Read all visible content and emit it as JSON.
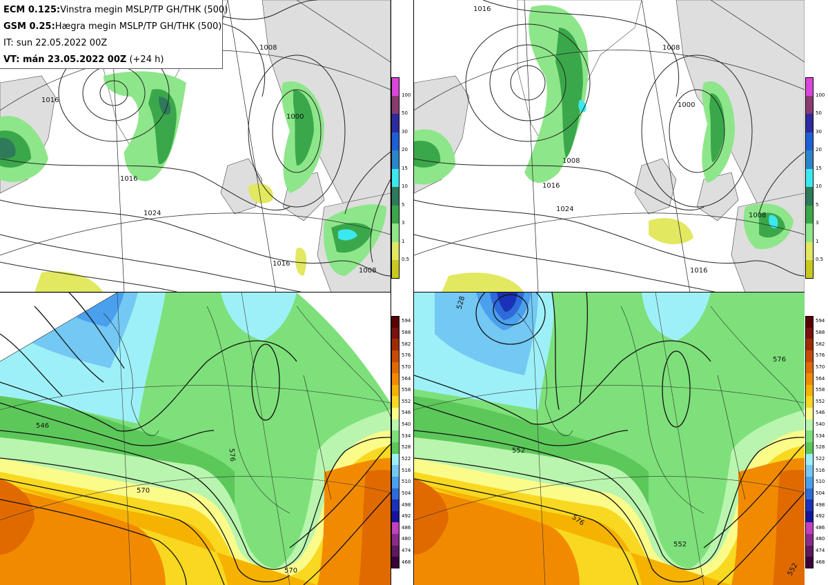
{
  "title_box": {
    "line1_bold": "ECM 0.125:",
    "line1_rest": "Vinstra megin MSLP/TP GH/THK (500)",
    "line2_bold": "GSM 0.25:",
    "line2_rest": "Hægra megin MSLP/TP GH/THK (500)",
    "line3": "IT: sun 22.05.2022 00Z",
    "line4_bold": "VT: mán 23.05.2022 00Z",
    "line4_rest": " (+24 h)"
  },
  "precip_colorbar": {
    "labels": [
      "100",
      "50",
      "30",
      "20",
      "15",
      "10",
      "5",
      "3",
      "1",
      "0.5"
    ],
    "colors": [
      "#d946d9",
      "#8a3a6e",
      "#2e2aa0",
      "#1f5fd6",
      "#2a86c8",
      "#3ce8f0",
      "#2e7a5a",
      "#3aa84a",
      "#8ee68a",
      "#e2e860",
      "#c8c820"
    ]
  },
  "thickness_colorbar": {
    "labels": [
      "594",
      "588",
      "582",
      "576",
      "570",
      "564",
      "558",
      "552",
      "546",
      "540",
      "534",
      "528",
      "522",
      "516",
      "510",
      "504",
      "498",
      "492",
      "486",
      "480",
      "474",
      "468"
    ],
    "colors": [
      "#5a0000",
      "#7a1010",
      "#a02a00",
      "#c84a00",
      "#e06a00",
      "#f28a00",
      "#f6b200",
      "#f8d820",
      "#fbfb8a",
      "#b9f5ae",
      "#7ee07a",
      "#5cc85a",
      "#9ef0f8",
      "#74c8f4",
      "#4aa0ec",
      "#2e6ad8",
      "#1a32b8",
      "#14149c",
      "#c040c0",
      "#8a2a8a",
      "#5c1a5c",
      "#3a003a"
    ]
  },
  "maps": {
    "tl": {
      "isobar_labels": [
        "1008",
        "1000",
        "1016",
        "1024",
        "1016",
        "1008",
        "1016"
      ]
    },
    "tr": {
      "isobar_labels": [
        "1016",
        "1008",
        "1000",
        "1008",
        "1016",
        "1024",
        "1016",
        "1008"
      ]
    },
    "bl": {
      "contour_labels": [
        "546",
        "576",
        "570",
        "570"
      ]
    },
    "br": {
      "contour_labels": [
        "528",
        "552",
        "576",
        "552",
        "576",
        "552"
      ]
    }
  }
}
